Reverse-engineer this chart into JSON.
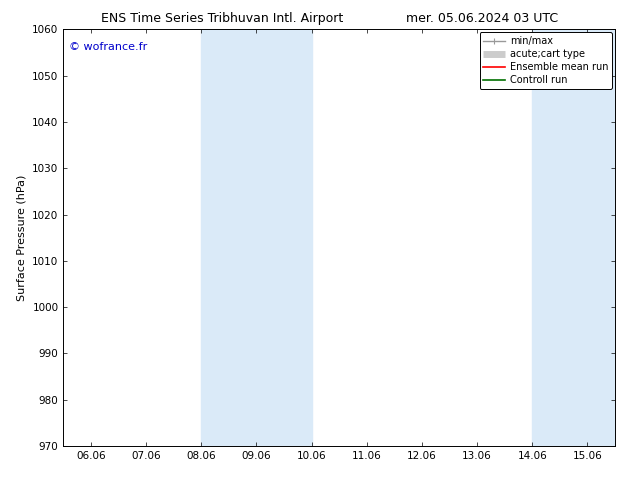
{
  "title_left": "ENS Time Series Tribhuvan Intl. Airport",
  "title_right": "mer. 05.06.2024 03 UTC",
  "ylabel": "Surface Pressure (hPa)",
  "ylim": [
    970,
    1060
  ],
  "yticks": [
    970,
    980,
    990,
    1000,
    1010,
    1020,
    1030,
    1040,
    1050,
    1060
  ],
  "xtick_labels": [
    "06.06",
    "07.06",
    "08.06",
    "09.06",
    "10.06",
    "11.06",
    "12.06",
    "13.06",
    "14.06",
    "15.06"
  ],
  "watermark": "© wofrance.fr",
  "watermark_color": "#0000cc",
  "background_color": "#ffffff",
  "shaded_regions": [
    {
      "xstart": 2,
      "xend": 4,
      "color": "#daeaf8"
    },
    {
      "xstart": 8,
      "xend": 9.6,
      "color": "#daeaf8"
    }
  ],
  "legend_entries": [
    {
      "label": "min/max",
      "color": "#999999",
      "lw": 1.0
    },
    {
      "label": "acute;cart type",
      "color": "#cccccc",
      "lw": 5
    },
    {
      "label": "Ensemble mean run",
      "color": "#ff0000",
      "lw": 1.2
    },
    {
      "label": "Controll run",
      "color": "#007000",
      "lw": 1.2
    }
  ],
  "title_fontsize": 9,
  "axis_fontsize": 7.5,
  "ylabel_fontsize": 8,
  "watermark_fontsize": 8
}
